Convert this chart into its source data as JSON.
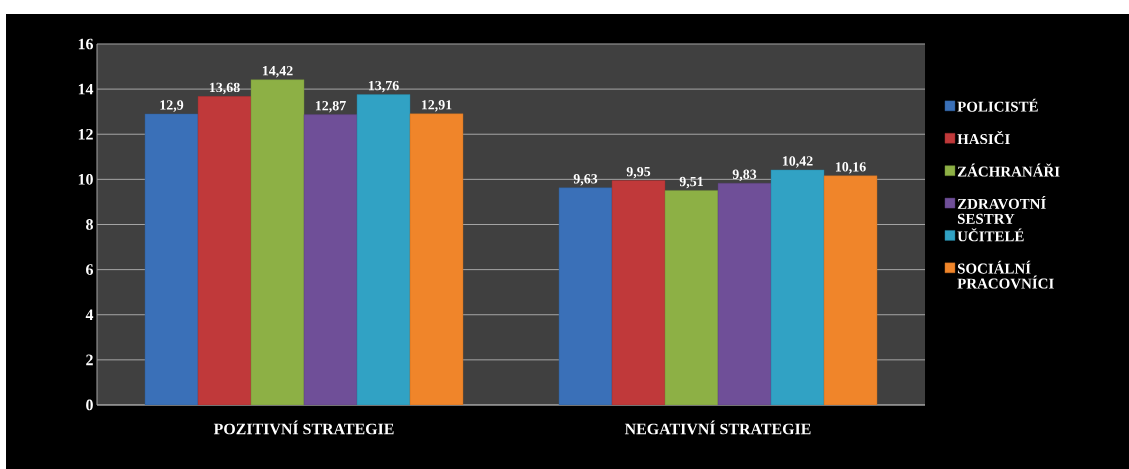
{
  "chart_data": {
    "type": "bar",
    "categories": [
      "POZITIVNÍ STRATEGIE",
      "NEGATIVNÍ STRATEGIE"
    ],
    "series": [
      {
        "name": "POLICISTÉ",
        "color": "#3a70b8",
        "values": [
          12.9,
          9.63
        ],
        "value_labels": [
          "12,9",
          "9,63"
        ]
      },
      {
        "name": "HASIČI",
        "color": "#c0393a",
        "values": [
          13.68,
          9.95
        ],
        "value_labels": [
          "13,68",
          "9,95"
        ]
      },
      {
        "name": "ZÁCHRANÁŘI",
        "color": "#8db045",
        "values": [
          14.42,
          9.51
        ],
        "value_labels": [
          "14,42",
          "9,51"
        ]
      },
      {
        "name": "ZDRAVOTNÍ SESTRY",
        "color": "#6f4f98",
        "values": [
          12.87,
          9.83
        ],
        "value_labels": [
          "12,87",
          "9,83"
        ]
      },
      {
        "name": "UČITELÉ",
        "color": "#31a2c4",
        "values": [
          13.76,
          10.42
        ],
        "value_labels": [
          "13,76",
          "10,42"
        ]
      },
      {
        "name": "SOCIÁLNÍ PRACOVNÍCI",
        "color": "#f0852a",
        "values": [
          12.91,
          10.16
        ],
        "value_labels": [
          "12,91",
          "10,16"
        ]
      }
    ],
    "ylim": [
      0,
      16
    ],
    "yticks": [
      0,
      2,
      4,
      6,
      8,
      10,
      12,
      14,
      16
    ],
    "grid": "y",
    "legend": "right"
  }
}
